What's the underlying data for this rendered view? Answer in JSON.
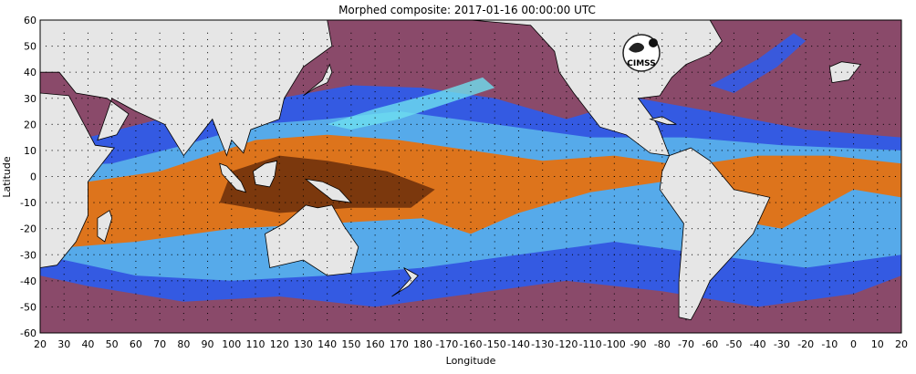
{
  "title": "Morphed composite: 2017-01-16 00:00:00 UTC",
  "x_axis_label": "Longitude",
  "y_axis_label": "Latitude",
  "x_ticks": [
    "20",
    "30",
    "40",
    "50",
    "60",
    "70",
    "80",
    "90",
    "100",
    "110",
    "120",
    "130",
    "140",
    "150",
    "160",
    "170",
    "180",
    "-170",
    "-160",
    "-150",
    "-140",
    "-130",
    "-120",
    "-110",
    "-100",
    "-90",
    "-80",
    "-70",
    "-60",
    "-50",
    "-40",
    "-30",
    "-20",
    "-10",
    "0",
    "10",
    "20"
  ],
  "y_ticks": [
    "60",
    "50",
    "40",
    "30",
    "20",
    "10",
    "0",
    "-10",
    "-20",
    "-30",
    "-40",
    "-50",
    "-60"
  ],
  "x_range_deg_east": [
    20,
    380
  ],
  "y_range_deg_north": [
    -60,
    60
  ],
  "logo": {
    "icon": "cimss-logo-icon",
    "text": "CIMSS"
  },
  "colors": {
    "land": "#e6e6e6",
    "dry": "#8a4a6a",
    "moist_blue": "#2a5cf0",
    "moist_cyan": "#6ee0f0",
    "wet_orange": "#e8700a",
    "very_wet": "#5a2408"
  }
}
